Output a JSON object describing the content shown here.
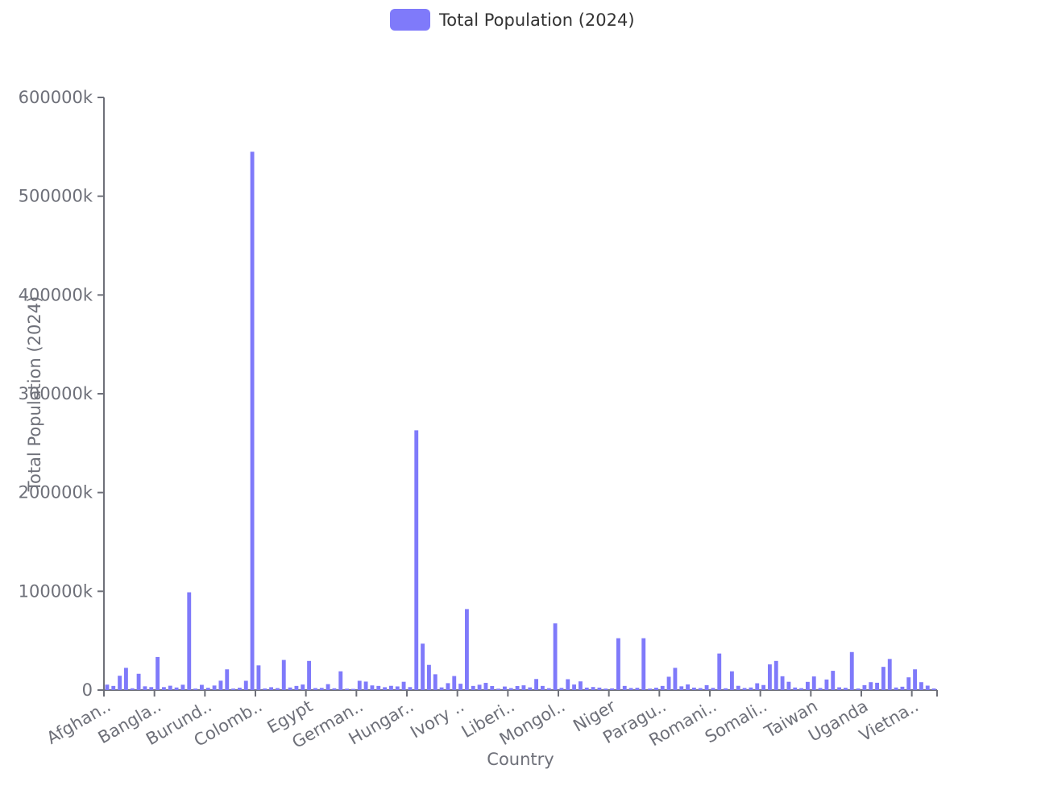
{
  "chart_data": {
    "type": "bar",
    "title": "",
    "xlabel": "Country",
    "ylabel": "Total Population (2024)",
    "legend": {
      "position": "top-center",
      "entries": [
        "Total Population (2024)"
      ]
    },
    "grid": false,
    "ylim": [
      0,
      600000
    ],
    "y_ticks": [
      0,
      100000,
      200000,
      300000,
      400000,
      500000,
      600000
    ],
    "y_tick_labels": [
      "0",
      "100000k",
      "200000k",
      "300000k",
      "400000k",
      "500000k",
      "600000k"
    ],
    "x_tick_labels": [
      "Afghan..",
      "Bangla..",
      "Burund..",
      "Colomb..",
      "Egypt",
      "German..",
      "Hungar..",
      "Ivory ..",
      "Liberi..",
      "Mongol..",
      "Niger",
      "Paragu..",
      "Romani..",
      "Somali..",
      "Taiwan",
      "Uganda",
      "Vietna.."
    ],
    "x_tick_label_indices": [
      0,
      8,
      16,
      24,
      32,
      40,
      48,
      56,
      64,
      72,
      80,
      88,
      96,
      104,
      112,
      120,
      128
    ],
    "colors": {
      "bar": "#7f7afa",
      "axis": "#6e7079"
    },
    "series": [
      {
        "name": "Total Population (2024)",
        "values": [
          5500,
          4200,
          14500,
          22500,
          1800,
          16500,
          3800,
          3000,
          33500,
          3000,
          4400,
          2600,
          5400,
          99000,
          1500,
          5300,
          2300,
          4600,
          9500,
          21000,
          1500,
          2400,
          9400,
          545000,
          25000,
          1600,
          2900,
          2000,
          30500,
          2600,
          4200,
          5600,
          29500,
          2000,
          2200,
          6000,
          1800,
          19000,
          1400,
          1200,
          9400,
          8600,
          4700,
          4200,
          2900,
          4300,
          3700,
          8400,
          3000,
          263000,
          47000,
          25500,
          16000,
          2700,
          7000,
          14200,
          6400,
          82000,
          4200,
          5400,
          7300,
          4100,
          1400,
          3600,
          2000,
          4100,
          4800,
          2700,
          11200,
          4200,
          1900,
          67500,
          2200,
          11000,
          5600,
          8800,
          2500,
          3100,
          2500,
          1500,
          1700,
          52500,
          4200,
          2100,
          2300,
          52500,
          1500,
          2400,
          4200,
          13500,
          22500,
          3800,
          5700,
          2500,
          2000,
          5000,
          2200,
          37000,
          1800,
          19000,
          4300,
          2100,
          2600,
          6900,
          5100,
          26000,
          29500,
          14000,
          8400,
          2600,
          1900,
          8300,
          13800,
          2100,
          10700,
          19500,
          2800,
          2300,
          38500,
          1600,
          5000,
          8000,
          7400,
          23500,
          31500,
          2600,
          3400,
          12900,
          21000,
          8000,
          4500,
          1600
        ]
      }
    ]
  }
}
